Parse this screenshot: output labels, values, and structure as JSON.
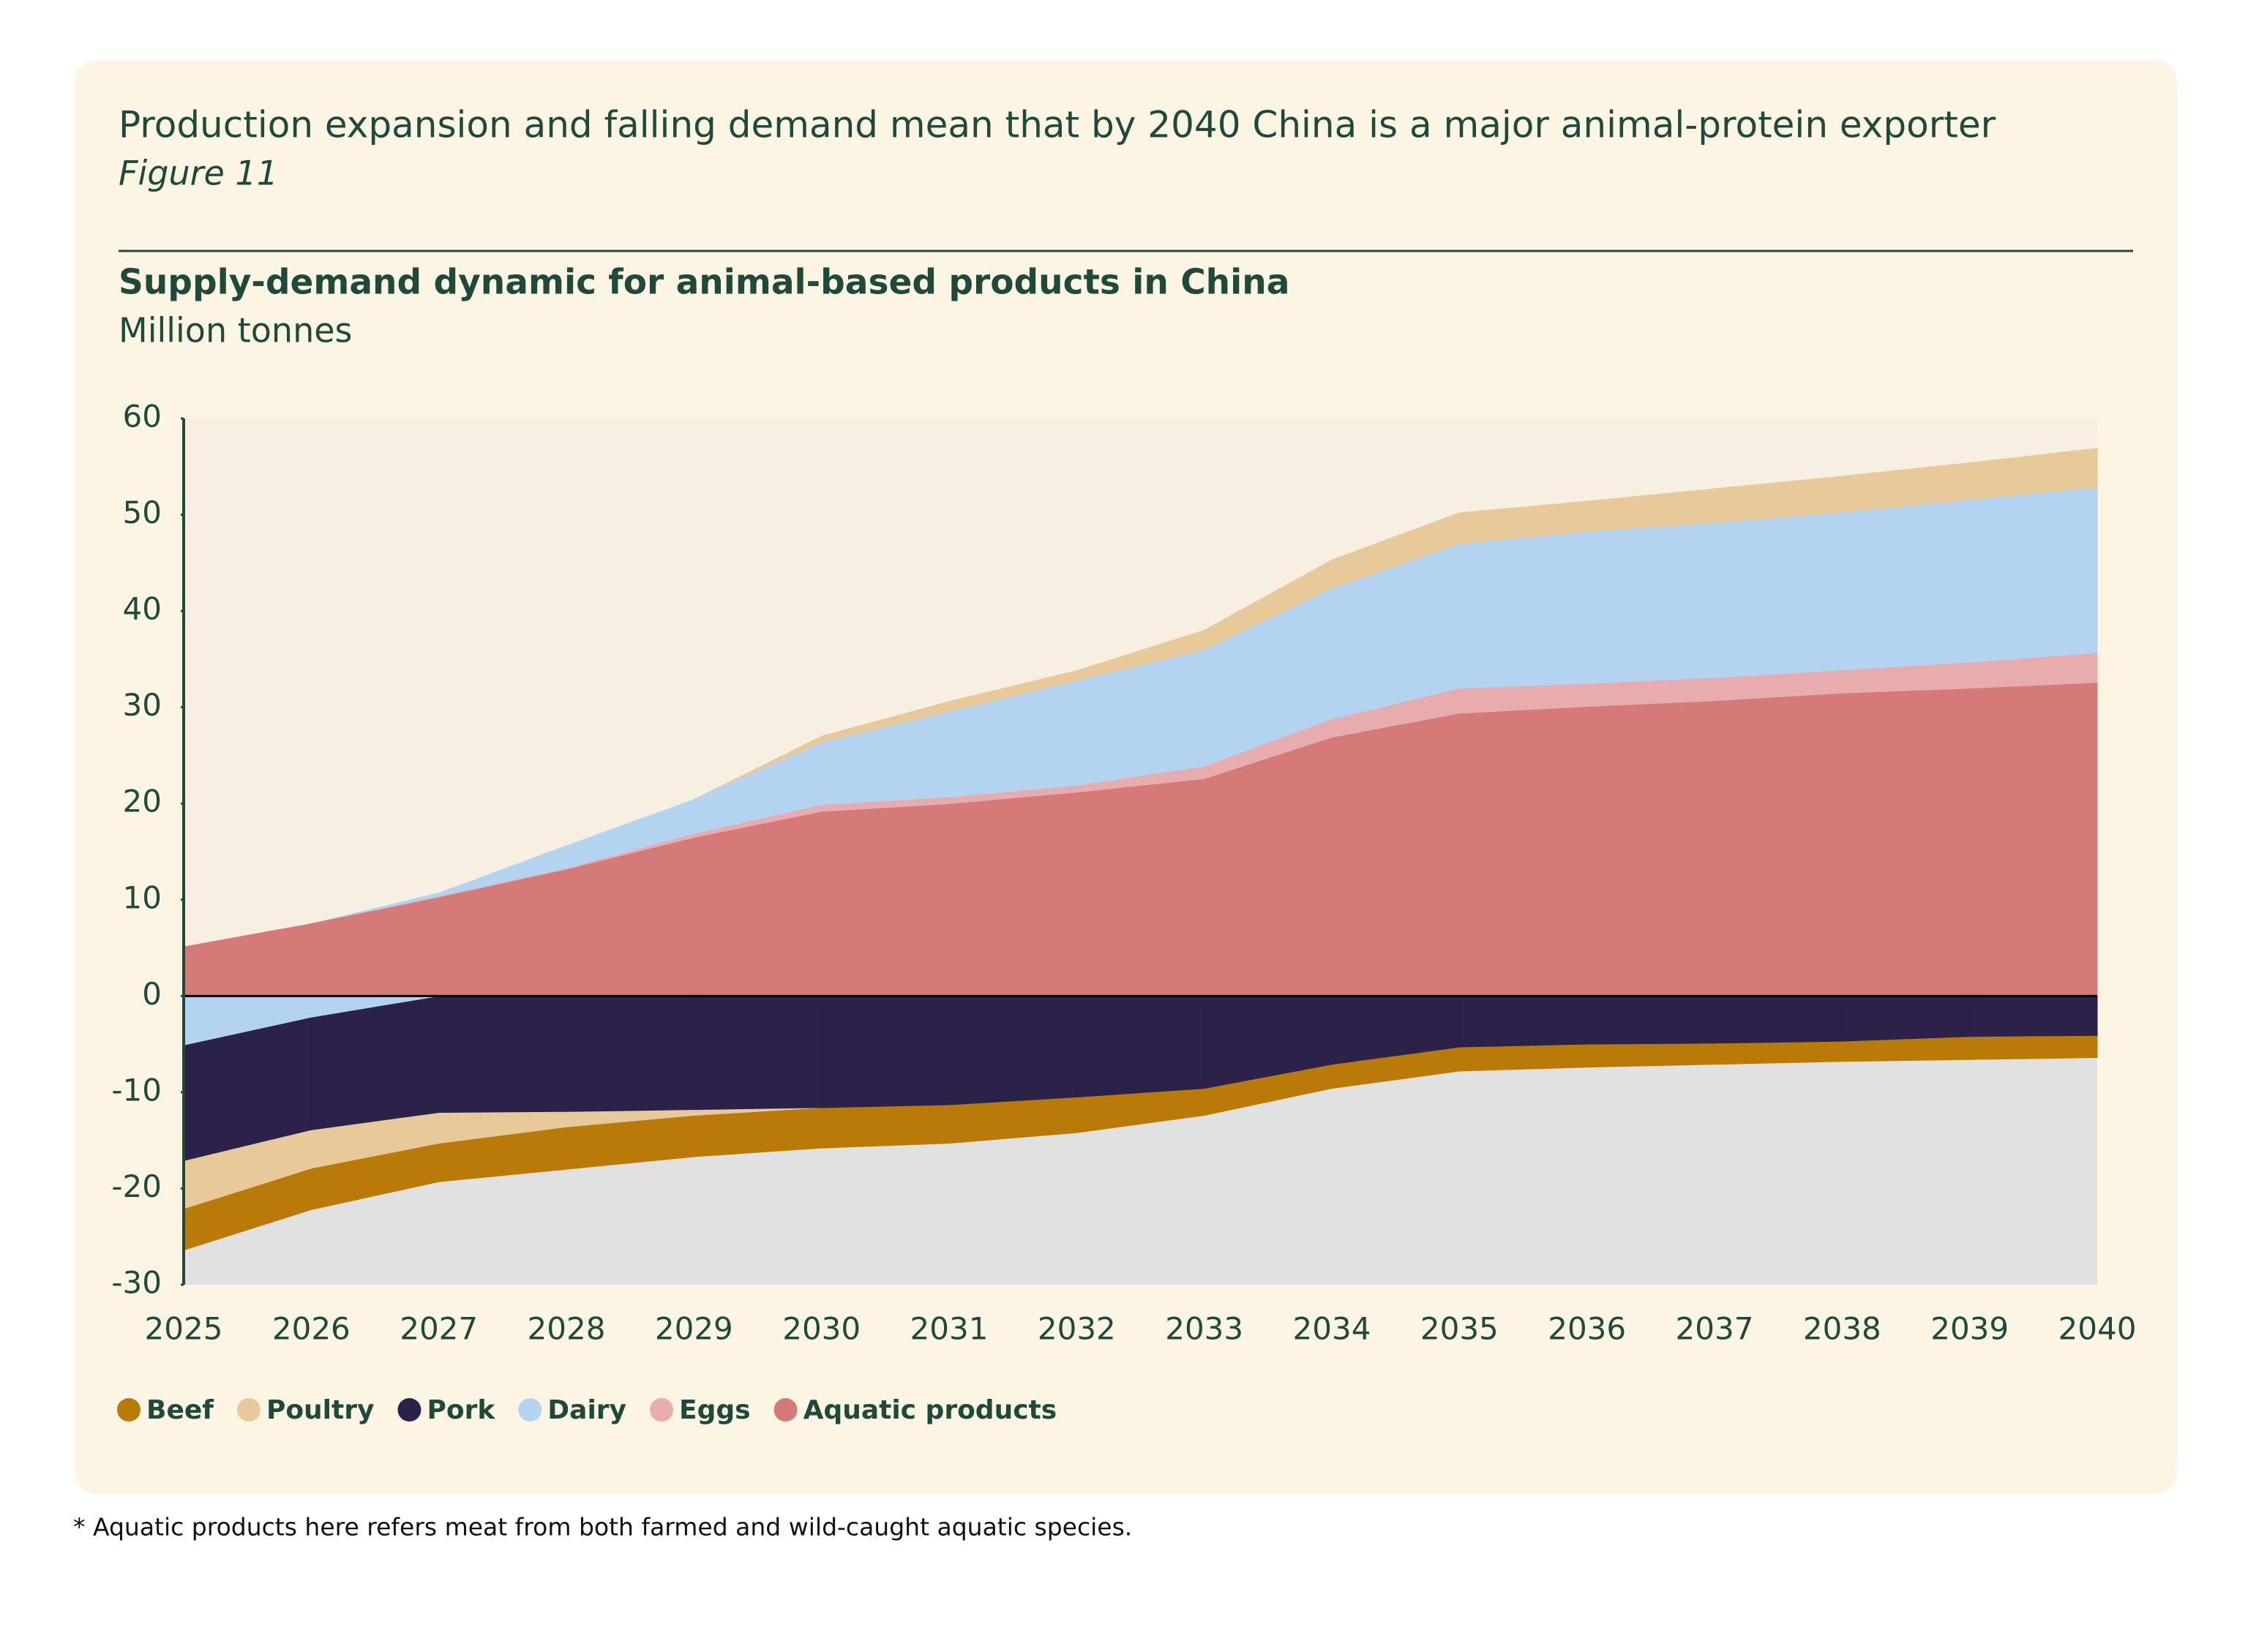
{
  "title": "Production expansion and falling demand mean that by 2040 China is a major animal-protein exporter",
  "figure_label": "Figure 11",
  "footnote": "* Aquatic products here refers meat from both farmed and wild-caught aquatic species.",
  "chart_data": {
    "type": "stacked-area",
    "title": "Supply-demand dynamic for animal-based products in China",
    "subtitle": "Million tonnes",
    "categories": [
      "2025",
      "2026",
      "2027",
      "2028",
      "2029",
      "2030",
      "2031",
      "2032",
      "2033",
      "2034",
      "2035",
      "2036",
      "2037",
      "2038",
      "2039",
      "2040"
    ],
    "series": [
      {
        "name": "Beef",
        "color": "#b97a08",
        "values": [
          -4.3,
          -4.3,
          -4,
          -4.4,
          -4.3,
          -4.2,
          -4,
          -3.7,
          -2.8,
          -2.5,
          -2.5,
          -2.4,
          -2.2,
          -2.1,
          -2.4,
          -2.3
        ]
      },
      {
        "name": "Poultry",
        "color": "#e8c99a",
        "values": [
          -5,
          -4,
          -3.2,
          -1.6,
          -0.6,
          0.7,
          1.1,
          1.1,
          2.1,
          3,
          3.3,
          3.2,
          3.6,
          3.8,
          3.9,
          4.1
        ]
      },
      {
        "name": "Pork",
        "color": "#2b2149",
        "values": [
          -12,
          -11.7,
          -12.1,
          -12,
          -11.8,
          -11.6,
          -11.3,
          -10.5,
          -9.6,
          -7.1,
          -5.3,
          -5,
          -4.9,
          -4.7,
          -4.2,
          -4.1
        ]
      },
      {
        "name": "Dairy",
        "color": "#b3d3f1",
        "values": [
          -5.1,
          -2.2,
          0.4,
          2.4,
          3.6,
          6.5,
          8.9,
          10.9,
          12.1,
          13.6,
          15,
          15.8,
          16.1,
          16.4,
          16.9,
          17.2
        ]
      },
      {
        "name": "Eggs",
        "color": "#e8acae",
        "values": [
          0,
          0,
          0.1,
          0.1,
          0.4,
          0.7,
          0.7,
          0.7,
          1.3,
          1.9,
          2.6,
          2.4,
          2.4,
          2.4,
          2.7,
          3.1
        ]
      },
      {
        "name": "Aquatic products",
        "color": "#d57a78",
        "values": [
          5.1,
          7.5,
          10.2,
          13.1,
          16.4,
          19.1,
          19.9,
          21.1,
          22.5,
          26.8,
          29.3,
          30,
          30.6,
          31.4,
          31.9,
          32.5
        ]
      }
    ],
    "ylim": [
      -30,
      60
    ],
    "yticks": [
      -30,
      -20,
      -10,
      0,
      10,
      20,
      30,
      40,
      50,
      60
    ]
  }
}
